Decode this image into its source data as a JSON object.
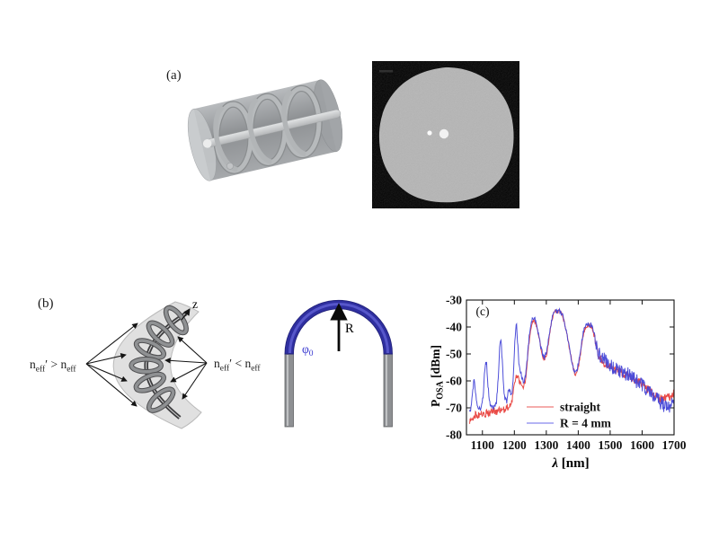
{
  "figure": {
    "background": "#ffffff",
    "panel_a": {
      "label": "(a)",
      "render_description": "transparent-cylinder-with-helical-core",
      "cross_section_description": "fiber-facet-micrograph"
    },
    "panel_b": {
      "label": "(b)",
      "axis_label": "z",
      "left_relation": {
        "n": "n",
        "sub": "eff",
        "op": "′ > n",
        "sub2": "eff"
      },
      "right_relation": {
        "n": "n",
        "sub": "eff",
        "op": "′ < n",
        "sub2": "eff"
      },
      "radius_label": "R",
      "angle_label": {
        "base": "φ",
        "sub": "0"
      }
    },
    "panel_c": {
      "label": "(c)"
    },
    "colors": {
      "bend_blue": "#2f2fa0",
      "fiber_gray": "#8e9093",
      "trace_red": "#e8403c",
      "trace_blue": "#4446d7"
    }
  },
  "chart_data": {
    "type": "line",
    "title": "",
    "xlabel": "λ [nm]",
    "xlabel_symbol": "λ",
    "xlabel_unit": " [nm]",
    "ylabel": "P_OSA [dBm]",
    "ylabel_p": "P",
    "ylabel_sub": "OSA",
    "ylabel_unit": " [dBm]",
    "xlim": [
      1050,
      1700
    ],
    "ylim": [
      -80,
      -30
    ],
    "xticks": [
      1100,
      1200,
      1300,
      1400,
      1500,
      1600,
      1700
    ],
    "yticks": [
      -80,
      -70,
      -60,
      -50,
      -40,
      -30
    ],
    "grid": false,
    "legend_position": "inside lower right",
    "series": [
      {
        "name": "straight",
        "color": "#e8403c",
        "legend_color": "#f2928f",
        "seed": 3,
        "noise": [
          [
            1060,
            1195,
            1.3
          ],
          [
            1195,
            1245,
            1.0
          ],
          [
            1245,
            1450,
            0.8
          ],
          [
            1450,
            1700,
            1.6
          ]
        ],
        "points": [
          [
            1060,
            -75.5
          ],
          [
            1066,
            -74
          ],
          [
            1072,
            -74.5
          ],
          [
            1078,
            -72.5
          ],
          [
            1085,
            -73
          ],
          [
            1092,
            -72.5
          ],
          [
            1100,
            -72
          ],
          [
            1108,
            -72.5
          ],
          [
            1115,
            -71.5
          ],
          [
            1122,
            -72
          ],
          [
            1130,
            -71.5
          ],
          [
            1138,
            -71
          ],
          [
            1145,
            -71.5
          ],
          [
            1152,
            -70.5
          ],
          [
            1160,
            -71
          ],
          [
            1168,
            -70.5
          ],
          [
            1175,
            -70
          ],
          [
            1182,
            -69.5
          ],
          [
            1188,
            -68.5
          ],
          [
            1194,
            -66.5
          ],
          [
            1199,
            -62.5
          ],
          [
            1204,
            -59
          ],
          [
            1209,
            -58
          ],
          [
            1214,
            -59.5
          ],
          [
            1219,
            -61
          ],
          [
            1224,
            -61.5
          ],
          [
            1229,
            -62
          ],
          [
            1234,
            -60.5
          ],
          [
            1239,
            -55
          ],
          [
            1244,
            -48
          ],
          [
            1249,
            -42.5
          ],
          [
            1254,
            -39
          ],
          [
            1259,
            -37.5
          ],
          [
            1264,
            -38
          ],
          [
            1269,
            -39.5
          ],
          [
            1274,
            -42
          ],
          [
            1280,
            -46
          ],
          [
            1286,
            -50
          ],
          [
            1292,
            -52
          ],
          [
            1297,
            -51.5
          ],
          [
            1302,
            -49.5
          ],
          [
            1307,
            -46
          ],
          [
            1312,
            -41.5
          ],
          [
            1317,
            -38
          ],
          [
            1322,
            -35.5
          ],
          [
            1327,
            -34.5
          ],
          [
            1332,
            -34
          ],
          [
            1337,
            -34.5
          ],
          [
            1342,
            -34
          ],
          [
            1347,
            -35
          ],
          [
            1352,
            -36.5
          ],
          [
            1357,
            -38.5
          ],
          [
            1363,
            -42
          ],
          [
            1369,
            -45.5
          ],
          [
            1375,
            -49.5
          ],
          [
            1381,
            -53.5
          ],
          [
            1387,
            -56.5
          ],
          [
            1392,
            -58
          ],
          [
            1397,
            -57
          ],
          [
            1402,
            -54
          ],
          [
            1407,
            -50
          ],
          [
            1412,
            -45.5
          ],
          [
            1417,
            -42
          ],
          [
            1422,
            -40.5
          ],
          [
            1427,
            -39.5
          ],
          [
            1432,
            -39
          ],
          [
            1437,
            -40
          ],
          [
            1442,
            -40
          ],
          [
            1447,
            -42
          ],
          [
            1452,
            -44.5
          ],
          [
            1458,
            -48
          ],
          [
            1464,
            -50.5
          ],
          [
            1470,
            -52
          ],
          [
            1477,
            -53
          ],
          [
            1485,
            -54
          ],
          [
            1493,
            -54.5
          ],
          [
            1501,
            -55
          ],
          [
            1510,
            -55.5
          ],
          [
            1519,
            -56.5
          ],
          [
            1528,
            -56.5
          ],
          [
            1537,
            -57
          ],
          [
            1546,
            -57.5
          ],
          [
            1555,
            -58
          ],
          [
            1564,
            -58.5
          ],
          [
            1573,
            -59.5
          ],
          [
            1582,
            -60
          ],
          [
            1591,
            -60.5
          ],
          [
            1600,
            -61
          ],
          [
            1609,
            -62
          ],
          [
            1618,
            -63
          ],
          [
            1627,
            -64
          ],
          [
            1636,
            -65
          ],
          [
            1645,
            -66
          ],
          [
            1654,
            -66.5
          ],
          [
            1663,
            -67
          ],
          [
            1672,
            -66.5
          ],
          [
            1681,
            -66
          ],
          [
            1690,
            -65.5
          ],
          [
            1700,
            -64.5
          ]
        ]
      },
      {
        "name": "R = 4 mm",
        "color": "#4446d7",
        "legend_color": "#9b9bf0",
        "seed": 8,
        "noise": [
          [
            1060,
            1195,
            1.0
          ],
          [
            1195,
            1245,
            1.1
          ],
          [
            1245,
            1450,
            0.9
          ],
          [
            1450,
            1700,
            2.7
          ]
        ],
        "points": [
          [
            1060,
            -72
          ],
          [
            1064,
            -70
          ],
          [
            1068,
            -65.5
          ],
          [
            1072,
            -61
          ],
          [
            1075,
            -60
          ],
          [
            1078,
            -63.5
          ],
          [
            1082,
            -68.5
          ],
          [
            1087,
            -70.5
          ],
          [
            1093,
            -70.5
          ],
          [
            1098,
            -69
          ],
          [
            1102,
            -66
          ],
          [
            1106,
            -58.5
          ],
          [
            1110,
            -52.5
          ],
          [
            1113,
            -53.5
          ],
          [
            1117,
            -61
          ],
          [
            1121,
            -67
          ],
          [
            1126,
            -69.5
          ],
          [
            1132,
            -70
          ],
          [
            1138,
            -69.5
          ],
          [
            1144,
            -68
          ],
          [
            1149,
            -60
          ],
          [
            1154,
            -48
          ],
          [
            1158,
            -45
          ],
          [
            1162,
            -52
          ],
          [
            1166,
            -62
          ],
          [
            1171,
            -67
          ],
          [
            1176,
            -67.5
          ],
          [
            1181,
            -64
          ],
          [
            1186,
            -63
          ],
          [
            1191,
            -65.5
          ],
          [
            1196,
            -61
          ],
          [
            1200,
            -49
          ],
          [
            1204,
            -40.5
          ],
          [
            1207,
            -39.5
          ],
          [
            1211,
            -47
          ],
          [
            1215,
            -54.5
          ],
          [
            1220,
            -57
          ],
          [
            1226,
            -59.5
          ],
          [
            1231,
            -60.5
          ],
          [
            1236,
            -57.5
          ],
          [
            1241,
            -51
          ],
          [
            1246,
            -44
          ],
          [
            1251,
            -40
          ],
          [
            1256,
            -37.5
          ],
          [
            1261,
            -36.5
          ],
          [
            1266,
            -37.5
          ],
          [
            1271,
            -40
          ],
          [
            1277,
            -43.5
          ],
          [
            1283,
            -47.5
          ],
          [
            1289,
            -50.5
          ],
          [
            1295,
            -51.5
          ],
          [
            1300,
            -49.5
          ],
          [
            1305,
            -46.5
          ],
          [
            1310,
            -42
          ],
          [
            1315,
            -38.5
          ],
          [
            1320,
            -36
          ],
          [
            1325,
            -34.5
          ],
          [
            1330,
            -34
          ],
          [
            1335,
            -34.5
          ],
          [
            1340,
            -34
          ],
          [
            1345,
            -34.5
          ],
          [
            1350,
            -35.5
          ],
          [
            1356,
            -37.5
          ],
          [
            1362,
            -41
          ],
          [
            1368,
            -45
          ],
          [
            1374,
            -49
          ],
          [
            1380,
            -53
          ],
          [
            1386,
            -56
          ],
          [
            1391,
            -57.5
          ],
          [
            1396,
            -56
          ],
          [
            1401,
            -53.5
          ],
          [
            1406,
            -49.5
          ],
          [
            1411,
            -45.5
          ],
          [
            1416,
            -42
          ],
          [
            1421,
            -40
          ],
          [
            1426,
            -39
          ],
          [
            1431,
            -38.5
          ],
          [
            1436,
            -39.5
          ],
          [
            1441,
            -39
          ],
          [
            1446,
            -41
          ],
          [
            1451,
            -43.5
          ],
          [
            1457,
            -46.5
          ],
          [
            1463,
            -49.5
          ],
          [
            1469,
            -51
          ],
          [
            1476,
            -51.5
          ],
          [
            1484,
            -52.5
          ],
          [
            1492,
            -53.5
          ],
          [
            1500,
            -54.5
          ],
          [
            1509,
            -55
          ],
          [
            1518,
            -55.5
          ],
          [
            1527,
            -56
          ],
          [
            1536,
            -56.5
          ],
          [
            1545,
            -57
          ],
          [
            1554,
            -57.5
          ],
          [
            1563,
            -58.5
          ],
          [
            1572,
            -59
          ],
          [
            1581,
            -60
          ],
          [
            1590,
            -60.5
          ],
          [
            1599,
            -61.5
          ],
          [
            1608,
            -62.5
          ],
          [
            1617,
            -63.5
          ],
          [
            1626,
            -64.5
          ],
          [
            1635,
            -65.5
          ],
          [
            1644,
            -66.5
          ],
          [
            1653,
            -67.5
          ],
          [
            1662,
            -68.5
          ],
          [
            1671,
            -69.5
          ],
          [
            1679,
            -70
          ],
          [
            1686,
            -69.5
          ],
          [
            1692,
            -68.5
          ],
          [
            1696,
            -67.5
          ],
          [
            1700,
            -66.5
          ]
        ]
      }
    ]
  }
}
